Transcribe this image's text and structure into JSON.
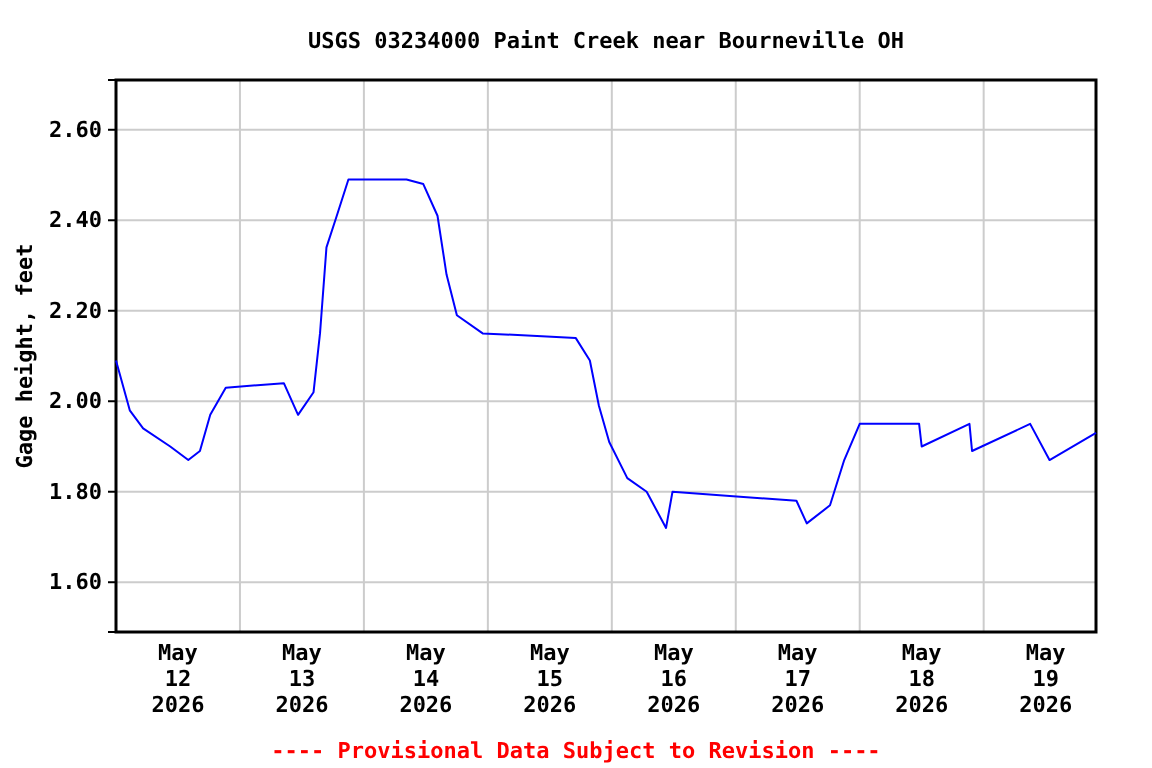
{
  "chart_data": {
    "type": "line",
    "title": "USGS 03234000 Paint Creek near Bourneville OH",
    "ylabel": "Gage height, feet",
    "annotations": [
      "---- Provisional Data Subject to Revision ----"
    ],
    "x": [
      "2026-05-12T00:00",
      "2026-05-12T02:40",
      "2026-05-12T05:15",
      "2026-05-12T10:30",
      "2026-05-12T14:00",
      "2026-05-12T16:15",
      "2026-05-12T18:15",
      "2026-05-12T21:15",
      "2026-05-13T08:30",
      "2026-05-13T11:15",
      "2026-05-13T14:15",
      "2026-05-13T15:30",
      "2026-05-13T16:45",
      "2026-05-13T18:45",
      "2026-05-13T21:00",
      "2026-05-14T08:15",
      "2026-05-14T11:30",
      "2026-05-14T14:15",
      "2026-05-14T16:00",
      "2026-05-14T18:00",
      "2026-05-14T23:00",
      "2026-05-15T17:00",
      "2026-05-15T19:45",
      "2026-05-15T21:30",
      "2026-05-15T23:30",
      "2026-05-16T03:00",
      "2026-05-16T06:45",
      "2026-05-16T10:30",
      "2026-05-16T11:45",
      "2026-05-16T23:30",
      "2026-05-17T11:45",
      "2026-05-17T13:45",
      "2026-05-17T18:15",
      "2026-05-17T21:00",
      "2026-05-18T00:00",
      "2026-05-18T11:30",
      "2026-05-18T12:00",
      "2026-05-18T21:15",
      "2026-05-18T21:45",
      "2026-05-19T09:00",
      "2026-05-19T12:45",
      "2026-05-19T21:45"
    ],
    "series": [
      {
        "color": "#0000ff",
        "values": [
          2.09,
          1.98,
          1.94,
          1.9,
          1.87,
          1.89,
          1.97,
          2.03,
          2.04,
          1.97,
          2.02,
          2.15,
          2.34,
          2.41,
          2.49,
          2.49,
          2.48,
          2.41,
          2.28,
          2.19,
          2.15,
          2.14,
          2.09,
          1.99,
          1.91,
          1.83,
          1.8,
          1.72,
          1.8,
          1.79,
          1.78,
          1.73,
          1.77,
          1.87,
          1.95,
          1.95,
          1.9,
          1.95,
          1.89,
          1.95,
          1.87,
          1.93
        ]
      }
    ],
    "xlim": [
      "2026-05-12T00:00",
      "2026-05-19T21:45"
    ],
    "ylim": [
      1.49,
      2.71
    ],
    "yticks": [
      {
        "value": 1.6,
        "label": "1.60"
      },
      {
        "value": 1.8,
        "label": "1.80"
      },
      {
        "value": 2.0,
        "label": "2.00"
      },
      {
        "value": 2.2,
        "label": "2.20"
      },
      {
        "value": 2.4,
        "label": "2.40"
      },
      {
        "value": 2.6,
        "label": "2.60"
      }
    ],
    "xticks": [
      {
        "value": "2026-05-12T12:00",
        "label": "May\n12\n2026"
      },
      {
        "value": "2026-05-13T00:00",
        "label": null
      },
      {
        "value": "2026-05-13T12:00",
        "label": "May\n13\n2026"
      },
      {
        "value": "2026-05-14T00:00",
        "label": null
      },
      {
        "value": "2026-05-14T12:00",
        "label": "May\n14\n2026"
      },
      {
        "value": "2026-05-15T00:00",
        "label": null
      },
      {
        "value": "2026-05-15T12:00",
        "label": "May\n15\n2026"
      },
      {
        "value": "2026-05-16T00:00",
        "label": null
      },
      {
        "value": "2026-05-16T12:00",
        "label": "May\n16\n2026"
      },
      {
        "value": "2026-05-17T00:00",
        "label": null
      },
      {
        "value": "2026-05-17T12:00",
        "label": "May\n17\n2026"
      },
      {
        "value": "2026-05-18T00:00",
        "label": null
      },
      {
        "value": "2026-05-18T12:00",
        "label": "May\n18\n2026"
      },
      {
        "value": "2026-05-19T00:00",
        "label": null
      },
      {
        "value": "2026-05-19T12:00",
        "label": "May\n19\n2026"
      }
    ],
    "grid": true,
    "marker": "none",
    "line_style": "solid"
  }
}
